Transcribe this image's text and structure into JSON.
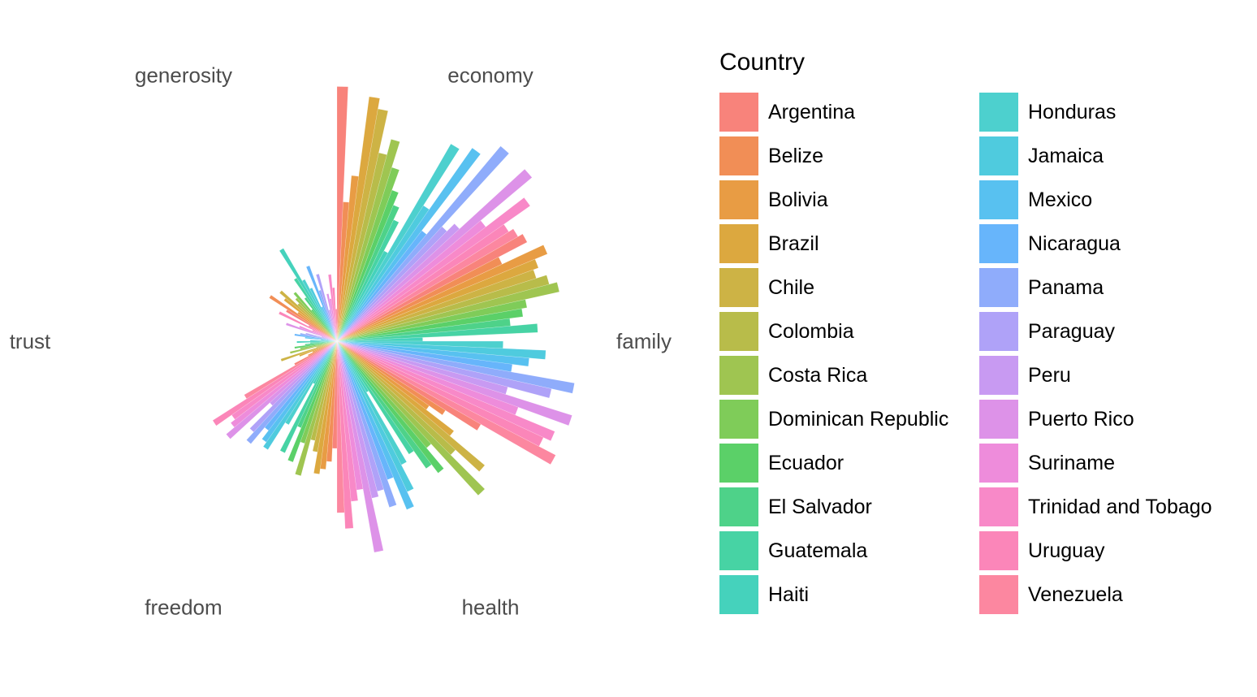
{
  "chart_data": {
    "type": "bar",
    "subtype": "radial-bar-polar",
    "title": "",
    "legend_title": "Country",
    "legend_position": "right",
    "axis_label_color": "#4d4d4d",
    "background_color": "#ffffff",
    "ylim": [
      0,
      1
    ],
    "grid": false,
    "categories": [
      "economy",
      "family",
      "health",
      "freedom",
      "trust",
      "generosity"
    ],
    "series": [
      {
        "name": "Argentina",
        "color": "#F8837B",
        "values": [
          0.95,
          0.8,
          0.62,
          0.4,
          0.18,
          0.22
        ]
      },
      {
        "name": "Belize",
        "color": "#F18E56",
        "values": [
          0.52,
          0.68,
          0.48,
          0.45,
          0.12,
          0.3
        ]
      },
      {
        "name": "Bolivia",
        "color": "#E89C44",
        "values": [
          0.62,
          0.85,
          0.42,
          0.48,
          0.1,
          0.18
        ]
      },
      {
        "name": "Brazil",
        "color": "#DCA83F",
        "values": [
          0.92,
          0.8,
          0.55,
          0.5,
          0.15,
          0.25
        ]
      },
      {
        "name": "Chile",
        "color": "#CDB345",
        "values": [
          0.88,
          0.78,
          0.72,
          0.42,
          0.22,
          0.28
        ]
      },
      {
        "name": "Colombia",
        "color": "#B8BC4A",
        "values": [
          0.72,
          0.82,
          0.6,
          0.38,
          0.08,
          0.2
        ]
      },
      {
        "name": "Costa Rica",
        "color": "#9FC551",
        "values": [
          0.78,
          0.85,
          0.78,
          0.52,
          0.18,
          0.22
        ]
      },
      {
        "name": "Dominican Republic",
        "color": "#7FCC59",
        "values": [
          0.68,
          0.72,
          0.52,
          0.4,
          0.14,
          0.24
        ]
      },
      {
        "name": "Ecuador",
        "color": "#5BD068",
        "values": [
          0.6,
          0.7,
          0.62,
          0.48,
          0.16,
          0.15
        ]
      },
      {
        "name": "El Salvador",
        "color": "#4ED289",
        "values": [
          0.55,
          0.65,
          0.58,
          0.35,
          0.12,
          0.2
        ]
      },
      {
        "name": "Guatemala",
        "color": "#47D3A4",
        "values": [
          0.5,
          0.75,
          0.5,
          0.46,
          0.1,
          0.28
        ]
      },
      {
        "name": "Haiti",
        "color": "#45D2BC",
        "values": [
          0.38,
          0.32,
          0.22,
          0.18,
          0.15,
          0.4
        ]
      },
      {
        "name": "Honduras",
        "color": "#4DD0CE",
        "values": [
          0.85,
          0.62,
          0.52,
          0.36,
          0.1,
          0.26
        ]
      },
      {
        "name": "Jamaica",
        "color": "#4FCBDE",
        "values": [
          0.6,
          0.78,
          0.62,
          0.48,
          0.06,
          0.22
        ]
      },
      {
        "name": "Mexico",
        "color": "#58C1F0",
        "values": [
          0.88,
          0.72,
          0.68,
          0.46,
          0.12,
          0.14
        ]
      },
      {
        "name": "Nicaragua",
        "color": "#67B5FB",
        "values": [
          0.52,
          0.66,
          0.55,
          0.42,
          0.16,
          0.3
        ]
      },
      {
        "name": "Panama",
        "color": "#8FACFB",
        "values": [
          0.95,
          0.9,
          0.65,
          0.5,
          0.14,
          0.2
        ]
      },
      {
        "name": "Paraguay",
        "color": "#AFA2F8",
        "values": [
          0.58,
          0.82,
          0.58,
          0.46,
          0.12,
          0.26
        ]
      },
      {
        "name": "Peru",
        "color": "#C89AF2",
        "values": [
          0.62,
          0.66,
          0.6,
          0.34,
          0.06,
          0.12
        ]
      },
      {
        "name": "Puerto Rico",
        "color": "#DD92E8",
        "values": [
          0.95,
          0.92,
          0.8,
          0.54,
          0.2,
          0.18
        ]
      },
      {
        "name": "Suriname",
        "color": "#EE8CDB",
        "values": [
          0.7,
          0.72,
          0.56,
          0.5,
          0.15,
          0.16
        ]
      },
      {
        "name": "Trinidad and Tobago",
        "color": "#F889C8",
        "values": [
          0.88,
          0.88,
          0.6,
          0.48,
          0.1,
          0.25
        ]
      },
      {
        "name": "Uruguay",
        "color": "#FB86B9",
        "values": [
          0.76,
          0.85,
          0.7,
          0.55,
          0.24,
          0.2
        ]
      },
      {
        "name": "Venezuela",
        "color": "#FC87A0",
        "values": [
          0.78,
          0.92,
          0.64,
          0.4,
          0.12,
          0.12
        ]
      }
    ]
  }
}
